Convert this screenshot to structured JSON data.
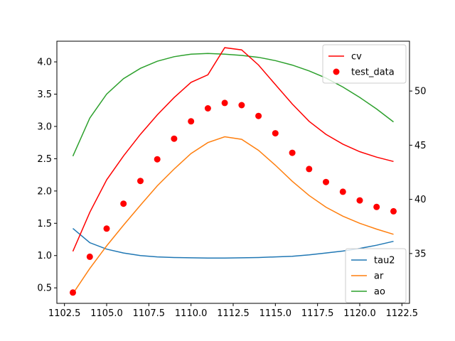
{
  "chart_data": {
    "type": "line",
    "x": [
      1103,
      1104,
      1105,
      1106,
      1107,
      1108,
      1109,
      1110,
      1111,
      1112,
      1113,
      1114,
      1115,
      1116,
      1117,
      1118,
      1119,
      1120,
      1121,
      1122
    ],
    "xlim": [
      1102.05,
      1122.95
    ],
    "xticks": [
      "1102.5",
      "1105.0",
      "1107.5",
      "1110.0",
      "1112.5",
      "1115.0",
      "1117.5",
      "1120.0",
      "1122.5"
    ],
    "xtick_values": [
      1102.5,
      1105.0,
      1107.5,
      1110.0,
      1112.5,
      1115.0,
      1117.5,
      1120.0,
      1122.5
    ],
    "left_axis": {
      "ylim": [
        0.26,
        4.32
      ],
      "ticks": [
        "0.5",
        "1.0",
        "1.5",
        "2.0",
        "2.5",
        "3.0",
        "3.5",
        "4.0"
      ],
      "tick_values": [
        0.5,
        1.0,
        1.5,
        2.0,
        2.5,
        3.0,
        3.5,
        4.0
      ],
      "series": [
        {
          "name": "tau2",
          "color": "#1f77b4",
          "style": "line",
          "values": [
            1.42,
            1.2,
            1.1,
            1.04,
            1.0,
            0.98,
            0.97,
            0.965,
            0.962,
            0.962,
            0.965,
            0.97,
            0.98,
            0.99,
            1.01,
            1.04,
            1.07,
            1.11,
            1.16,
            1.22
          ]
        },
        {
          "name": "ar",
          "color": "#ff7f0e",
          "style": "line",
          "values": [
            0.41,
            0.8,
            1.15,
            1.47,
            1.78,
            2.08,
            2.34,
            2.58,
            2.75,
            2.84,
            2.8,
            2.63,
            2.4,
            2.15,
            1.93,
            1.75,
            1.61,
            1.5,
            1.41,
            1.33
          ]
        },
        {
          "name": "ao",
          "color": "#2ca02c",
          "style": "line",
          "values": [
            2.54,
            3.13,
            3.5,
            3.74,
            3.9,
            4.01,
            4.08,
            4.12,
            4.13,
            4.12,
            4.1,
            4.07,
            4.02,
            3.95,
            3.86,
            3.75,
            3.61,
            3.45,
            3.27,
            3.07
          ]
        }
      ],
      "legend_position": "lower-right"
    },
    "right_axis": {
      "ylim": [
        30.4,
        54.6
      ],
      "ticks": [
        "35",
        "40",
        "45",
        "50"
      ],
      "tick_values": [
        35,
        40,
        45,
        50
      ],
      "series": [
        {
          "name": "cv",
          "color": "#ff0000",
          "style": "line",
          "values": [
            35.2,
            38.8,
            41.8,
            44.0,
            46.0,
            47.8,
            49.4,
            50.8,
            51.5,
            54.0,
            53.8,
            52.4,
            50.6,
            48.8,
            47.2,
            46.0,
            45.1,
            44.4,
            43.9,
            43.5
          ]
        },
        {
          "name": "test_data",
          "color": "#ff0000",
          "style": "scatter",
          "values": [
            31.4,
            34.7,
            37.3,
            39.6,
            41.7,
            43.7,
            45.6,
            47.2,
            48.4,
            48.9,
            48.7,
            47.7,
            46.1,
            44.3,
            42.8,
            41.6,
            40.7,
            39.9,
            39.3,
            38.9
          ]
        }
      ],
      "legend_position": "upper-right"
    },
    "grid": false
  }
}
